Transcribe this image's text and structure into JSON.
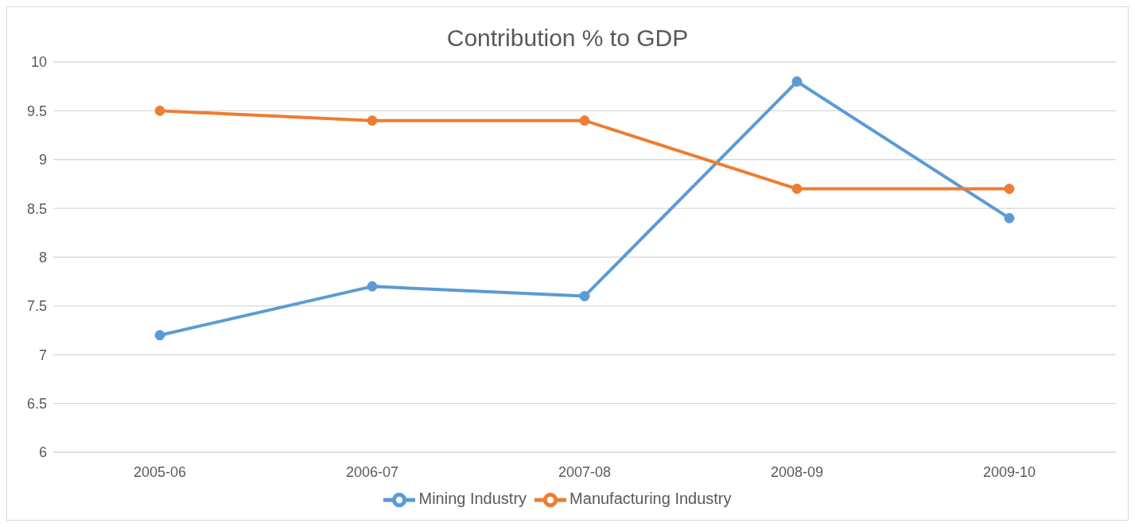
{
  "chart_data": {
    "type": "line",
    "title": "Contribution % to GDP",
    "categories": [
      "2005-06",
      "2006-07",
      "2007-08",
      "2008-09",
      "2009-10"
    ],
    "series": [
      {
        "name": "Mining Industry",
        "color": "#5b9bd5",
        "values": [
          7.2,
          7.7,
          7.6,
          9.8,
          8.4
        ]
      },
      {
        "name": "Manufacturing Industry",
        "color": "#ed7d31",
        "values": [
          9.5,
          9.4,
          9.4,
          8.7,
          8.7
        ]
      }
    ],
    "ylim": [
      6,
      10
    ],
    "yticks": [
      6,
      6.5,
      7,
      7.5,
      8,
      8.5,
      9,
      9.5,
      10
    ],
    "grid": "y",
    "legend": "bottom",
    "marker": "circle",
    "line_style": "solid"
  }
}
